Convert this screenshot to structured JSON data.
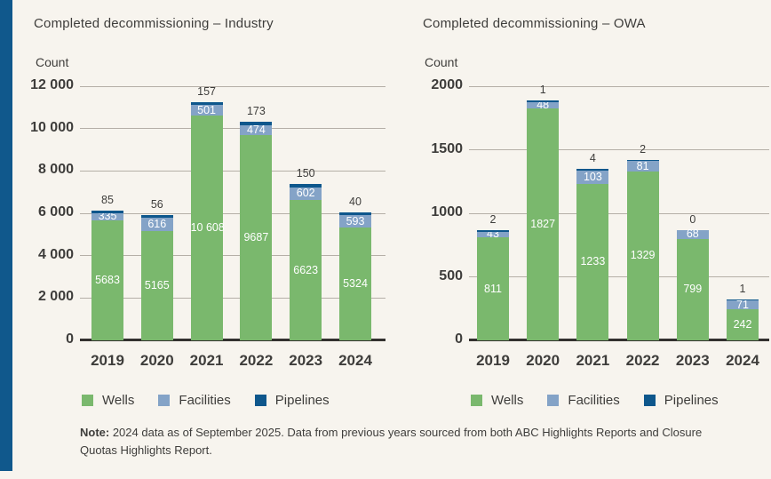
{
  "colors": {
    "background": "#f7f4ee",
    "accent_bar": "#10588c",
    "wells": "#7ab86d",
    "facilities": "#84a3c7",
    "pipelines": "#0e578c",
    "gridline": "#b5afa7",
    "axis": "#33312f",
    "text": "#3e3d3b"
  },
  "note": {
    "prefix": "Note:",
    "text": " 2024 data as of September 2025. Data from previous years sourced from both ABC Highlights Reports and Closure Quotas Highlights Report."
  },
  "chart_data": [
    {
      "type": "bar",
      "subtype": "stacked",
      "title": "Completed decommissioning – Industry",
      "ylabel": "Count",
      "xlabel": "",
      "ylim": [
        0,
        12000
      ],
      "grid": true,
      "legend_position": "bottom",
      "yticks": [
        0,
        2000,
        4000,
        6000,
        8000,
        10000,
        12000
      ],
      "ytick_labels": [
        "0",
        "2 000",
        "4 000",
        "6 000",
        "8 000",
        "10 000",
        "12 000"
      ],
      "categories": [
        "2019",
        "2020",
        "2021",
        "2022",
        "2023",
        "2024"
      ],
      "series": [
        {
          "name": "Wells",
          "color": "#7ab86d",
          "values": [
            5683,
            5165,
            10608,
            9687,
            6623,
            5324
          ],
          "labels": [
            "5683",
            "5165",
            "10 608",
            "9687",
            "6623",
            "5324"
          ]
        },
        {
          "name": "Facilities",
          "color": "#84a3c7",
          "values": [
            335,
            616,
            501,
            474,
            602,
            593
          ],
          "labels": [
            "335",
            "616",
            "501",
            "474",
            "602",
            "593"
          ]
        },
        {
          "name": "Pipelines",
          "color": "#0e578c",
          "values": [
            85,
            56,
            157,
            173,
            150,
            40
          ],
          "labels": [
            "85",
            "56",
            "157",
            "173",
            "150",
            "40"
          ]
        }
      ]
    },
    {
      "type": "bar",
      "subtype": "stacked",
      "title": "Completed decommissioning – OWA",
      "ylabel": "Count",
      "xlabel": "",
      "ylim": [
        0,
        2000
      ],
      "grid": true,
      "legend_position": "bottom",
      "yticks": [
        0,
        500,
        1000,
        1500,
        2000
      ],
      "ytick_labels": [
        "0",
        "500",
        "1000",
        "1500",
        "2000"
      ],
      "categories": [
        "2019",
        "2020",
        "2021",
        "2022",
        "2023",
        "2024"
      ],
      "series": [
        {
          "name": "Wells",
          "color": "#7ab86d",
          "values": [
            811,
            1827,
            1233,
            1329,
            799,
            242
          ],
          "labels": [
            "811",
            "1827",
            "1233",
            "1329",
            "799",
            "242"
          ]
        },
        {
          "name": "Facilities",
          "color": "#84a3c7",
          "values": [
            43,
            48,
            103,
            81,
            68,
            71
          ],
          "labels": [
            "43",
            "48",
            "103",
            "81",
            "68",
            "71"
          ]
        },
        {
          "name": "Pipelines",
          "color": "#0e578c",
          "values": [
            2,
            1,
            4,
            2,
            0,
            1
          ],
          "labels": [
            "2",
            "1",
            "4",
            "2",
            "0",
            "1"
          ]
        }
      ]
    }
  ]
}
